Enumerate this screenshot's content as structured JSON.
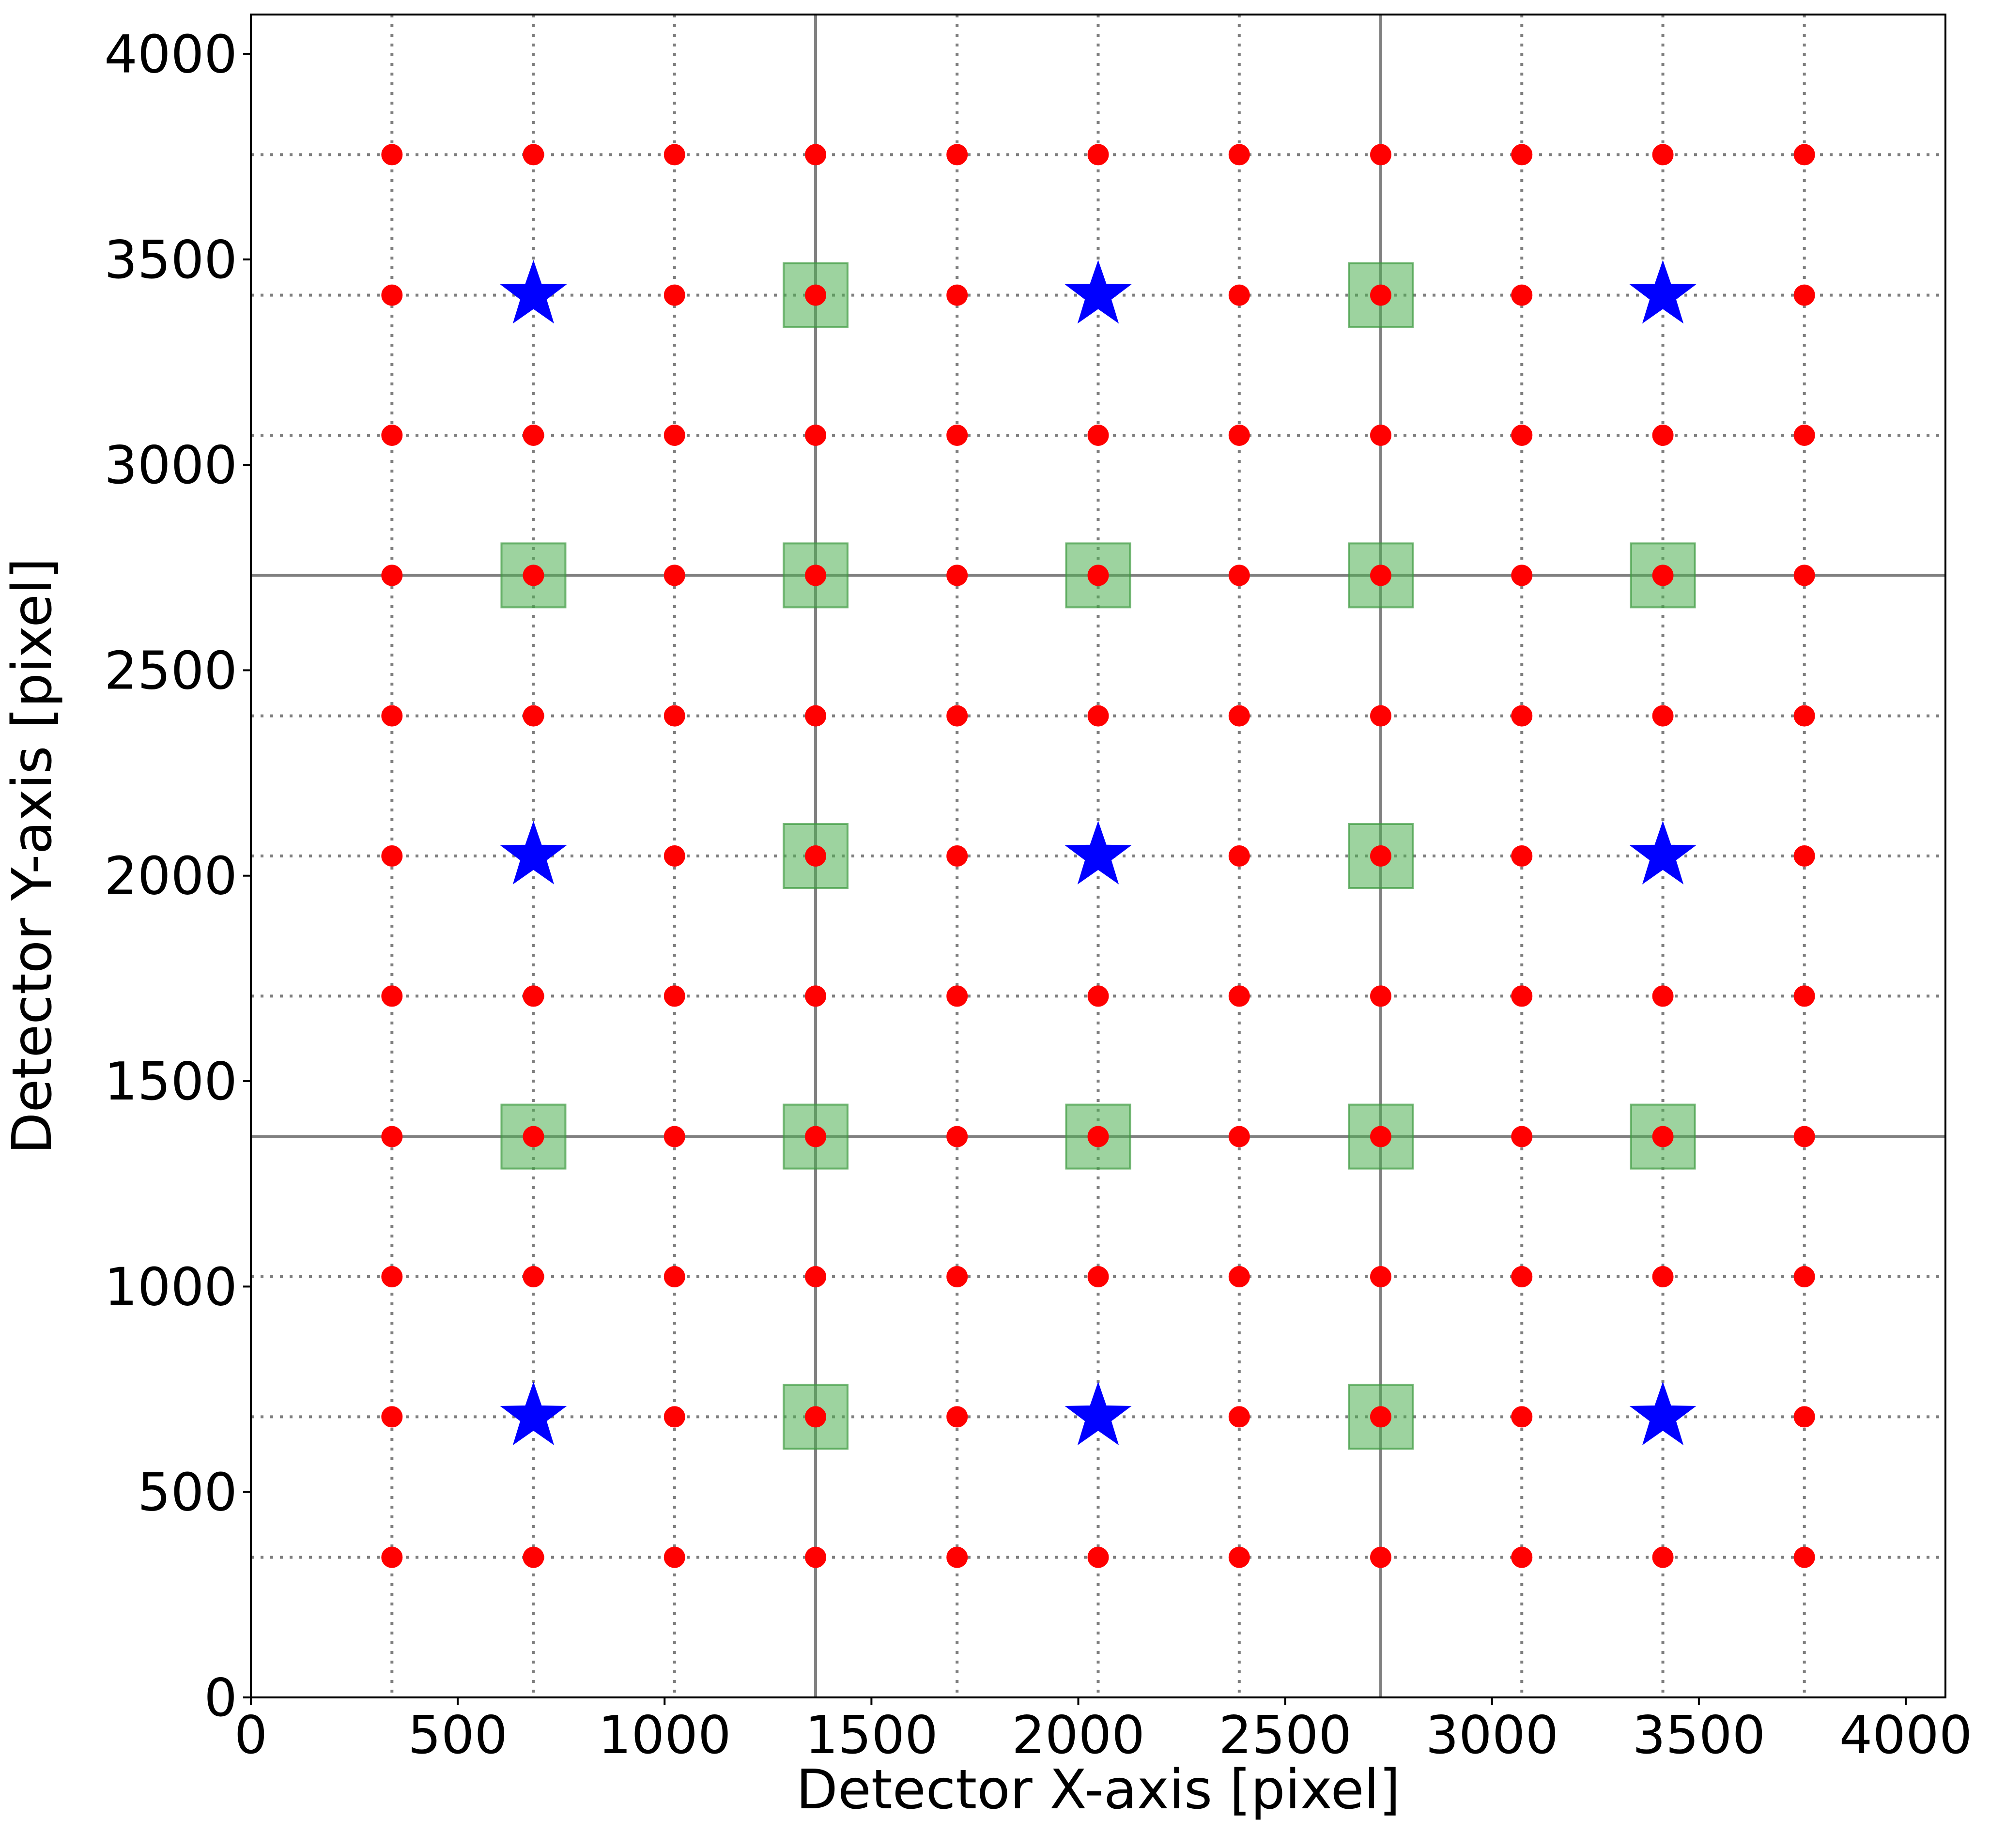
{
  "chart_data": {
    "type": "scatter",
    "title": "",
    "xlabel": "Detector X-axis [pixel]",
    "ylabel": "Detector Y-axis [pixel]",
    "xlim": [
      0,
      4096
    ],
    "ylim": [
      0,
      4096
    ],
    "x_ticks": [
      0,
      500,
      1000,
      1500,
      2000,
      2500,
      3000,
      3500,
      4000
    ],
    "y_ticks": [
      0,
      500,
      1000,
      1500,
      2000,
      2500,
      3000,
      3500,
      4000
    ],
    "grid_dotted": {
      "x": [
        341,
        683,
        1024,
        1707,
        2048,
        2389,
        3072,
        3413,
        3755
      ],
      "y": [
        341,
        683,
        1024,
        1707,
        2048,
        2389,
        3072,
        3413,
        3755
      ]
    },
    "grid_solid": {
      "x": [
        1365,
        2731
      ],
      "y": [
        1365,
        2731
      ]
    },
    "series": [
      {
        "marker": "circle",
        "color": "#ff0000",
        "x": [
          341,
          683,
          1024,
          1365,
          1707,
          2048,
          2389,
          2731,
          3072,
          3413,
          3755
        ],
        "y": [
          341,
          683,
          1024,
          1365,
          1707,
          2048,
          2389,
          2731,
          3072,
          3413,
          3755
        ],
        "layout": "grid"
      },
      {
        "marker": "square",
        "color": "#4caf50",
        "points": [
          [
            1365,
            683
          ],
          [
            2731,
            683
          ],
          [
            683,
            1365
          ],
          [
            1365,
            1365
          ],
          [
            2048,
            1365
          ],
          [
            2731,
            1365
          ],
          [
            3413,
            1365
          ],
          [
            1365,
            2048
          ],
          [
            2731,
            2048
          ],
          [
            683,
            2731
          ],
          [
            1365,
            2731
          ],
          [
            2048,
            2731
          ],
          [
            2731,
            2731
          ],
          [
            3413,
            2731
          ],
          [
            1365,
            3413
          ],
          [
            2731,
            3413
          ]
        ]
      },
      {
        "marker": "star",
        "color": "#0000ff",
        "points": [
          [
            683,
            683
          ],
          [
            2048,
            683
          ],
          [
            3413,
            683
          ],
          [
            683,
            2048
          ],
          [
            2048,
            2048
          ],
          [
            3413,
            2048
          ],
          [
            683,
            3413
          ],
          [
            2048,
            3413
          ],
          [
            3413,
            3413
          ]
        ]
      }
    ]
  }
}
